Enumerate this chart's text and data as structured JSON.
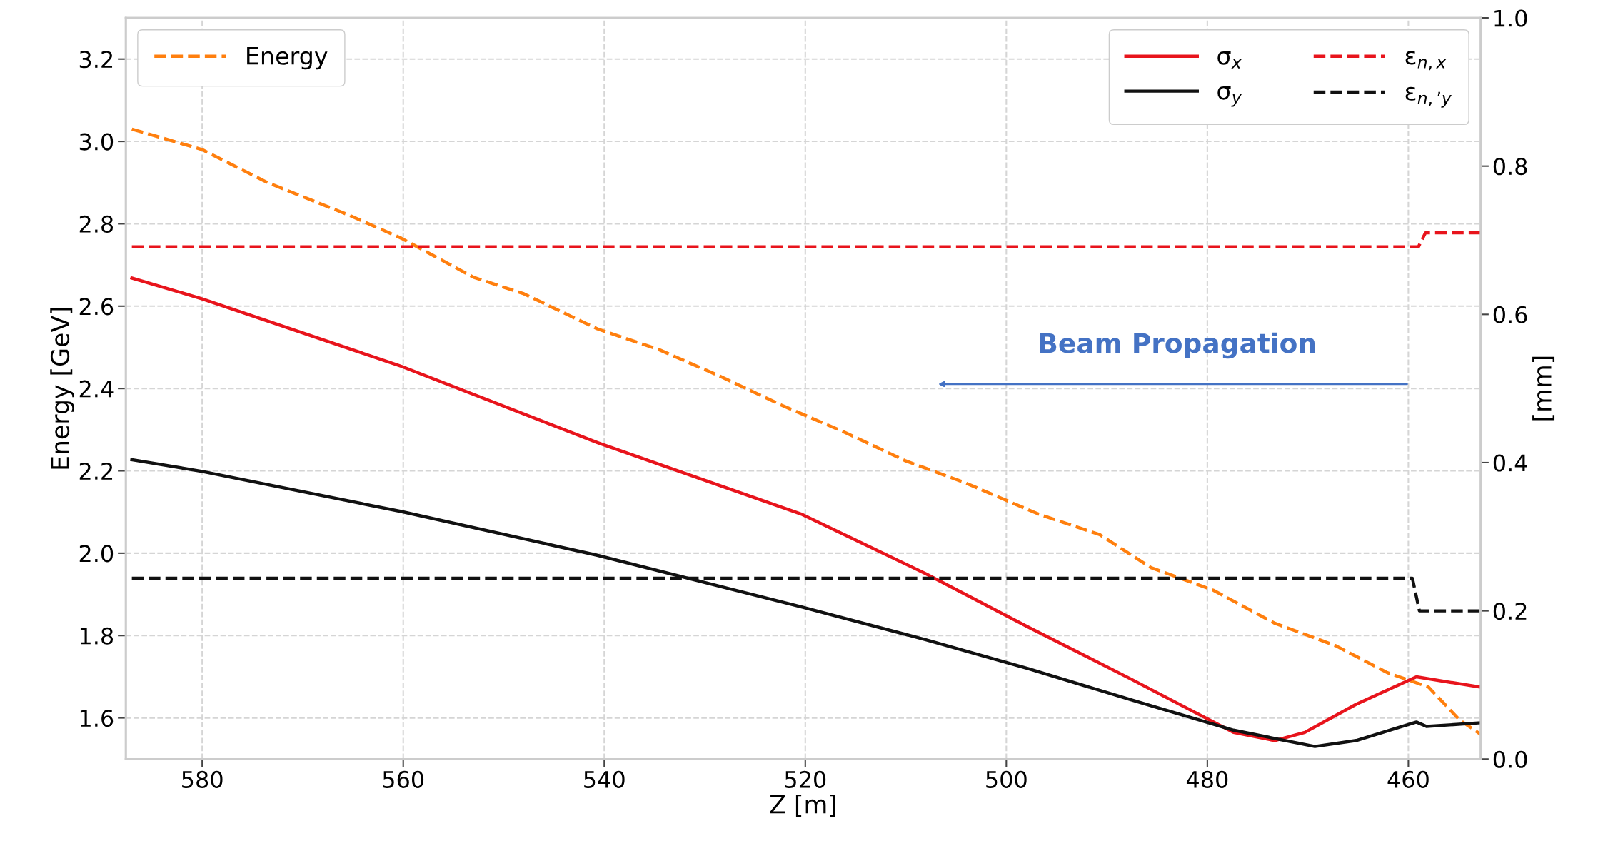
{
  "chart_data": {
    "type": "line",
    "xlabel": "Z [m]",
    "ylabel": "Energy [GeV]",
    "y2label": "[mm]",
    "xlim": [
      587.6,
      452.8
    ],
    "xticks": [
      580,
      560,
      540,
      520,
      500,
      480,
      460
    ],
    "ylim": [
      1.5,
      3.3
    ],
    "yticks": [
      1.6,
      1.8,
      {
        "value": 2,
        "label": "2.0"
      },
      2.2,
      2.4,
      2.6,
      2.8,
      {
        "value": 3,
        "label": "3.0"
      },
      3.2
    ],
    "y2lim": [
      0,
      1.0
    ],
    "y2ticks": [
      {
        "value": 0,
        "label": "0.0"
      },
      0.2,
      0.4,
      0.6,
      0.8,
      {
        "value": 1,
        "label": "1.0"
      }
    ],
    "grid": true,
    "legend": "top right",
    "line_style": "solid",
    "annotations": [
      "Beam Propagation"
    ],
    "series": [
      {
        "name": "Energy",
        "color": "#ff7f0e",
        "line_style": "dashed",
        "x": [
          587,
          580,
          573.5,
          565.3,
          560.2,
          553,
          548,
          540.7,
          534.6,
          528.5,
          522.4,
          516.2,
          510.1,
          504,
          496.8,
          490.7,
          485.6,
          479.4,
          473.3,
          467.2,
          462.1,
          458,
          454.9,
          452.8
        ],
        "values": [
          3.03,
          2.98,
          2.9,
          2.82,
          2.765,
          2.67,
          2.63,
          2.545,
          2.495,
          2.43,
          2.36,
          2.295,
          2.225,
          2.17,
          2.095,
          2.045,
          1.965,
          1.91,
          1.83,
          1.775,
          1.71,
          1.675,
          1.595,
          1.56
        ]
      },
      {
        "name": "σ$_{x}$",
        "color": "#e8141c",
        "axis": "y2",
        "x": [
          587,
          580,
          560.2,
          540.7,
          520.3,
          508,
          497.8,
          487.6,
          477.4,
          473.3,
          470.3,
          465.2,
          459.2,
          452.8
        ],
        "values": [
          0.649,
          0.621,
          0.53,
          0.427,
          0.33,
          0.25,
          0.178,
          0.108,
          0.036,
          0.025,
          0.036,
          0.074,
          0.111,
          0.097
        ]
      },
      {
        "name": "σ$_{y}$",
        "color": "#111111",
        "axis": "y2",
        "x": [
          587,
          580,
          560.2,
          540.7,
          520.3,
          508,
          497.8,
          487.6,
          477.4,
          469.3,
          465.2,
          459.2,
          458.2,
          452.8
        ],
        "values": [
          0.404,
          0.388,
          0.334,
          0.275,
          0.205,
          0.161,
          0.122,
          0.08,
          0.039,
          0.017,
          0.025,
          0.05,
          0.044,
          0.049
        ]
      },
      {
        "name": "ε$_{n,x}$",
        "color": "#e8141c",
        "axis": "y2",
        "line_style": "dashed",
        "x": [
          587,
          459,
          458.3,
          452.8
        ],
        "values": [
          0.691,
          0.691,
          0.71,
          0.71
        ]
      },
      {
        "name": "ε$_{n,’y}$",
        "color": "#111111",
        "axis": "y2",
        "line_style": "dashed",
        "x": [
          587,
          459.6,
          458.9,
          452.8
        ],
        "values": [
          0.244,
          0.244,
          0.2,
          0.2
        ]
      }
    ]
  }
}
